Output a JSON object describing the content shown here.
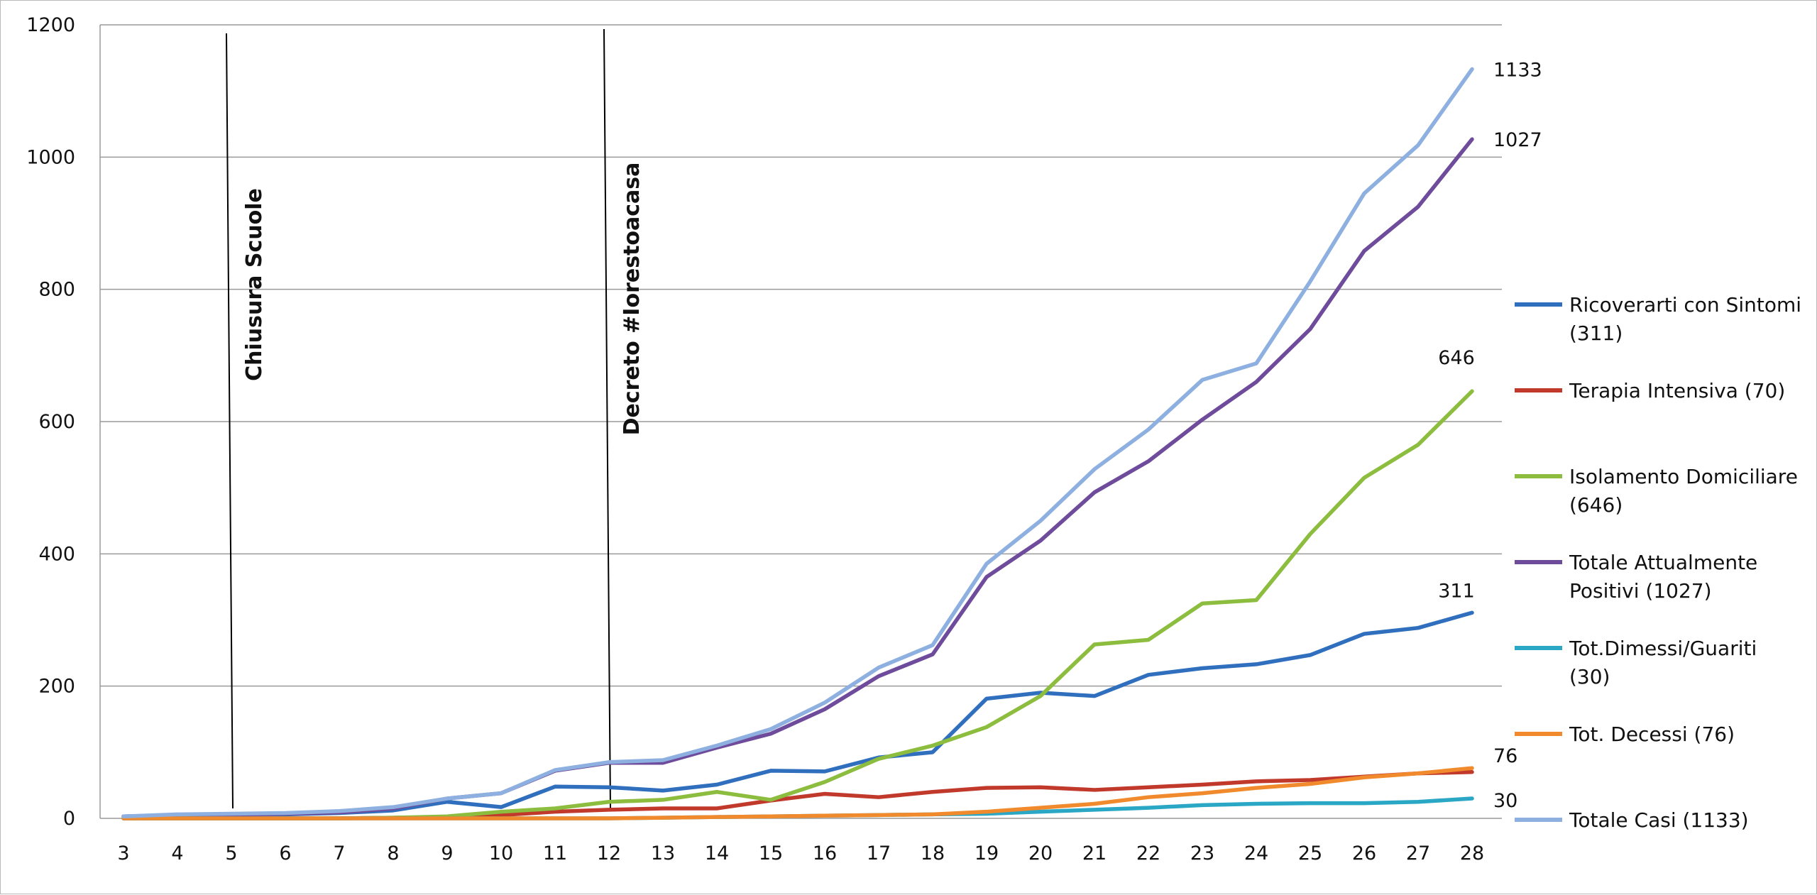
{
  "chart_data": {
    "type": "line",
    "title": "",
    "xlabel": "",
    "ylabel": "",
    "ylim": [
      0,
      1200
    ],
    "yticks": [
      0,
      200,
      400,
      600,
      800,
      1000,
      1200
    ],
    "grid": "horizontal",
    "legend_placement": "right",
    "x": [
      3,
      4,
      5,
      6,
      7,
      8,
      9,
      10,
      11,
      12,
      13,
      14,
      15,
      16,
      17,
      18,
      19,
      20,
      21,
      22,
      23,
      24,
      25,
      26,
      27,
      28
    ],
    "series": [
      {
        "name": "Ricoverarti con Sintomi (311)",
        "color": "#2f6fbd",
        "values": [
          3,
          5,
          5,
          6,
          8,
          12,
          25,
          17,
          48,
          47,
          42,
          51,
          72,
          71,
          92,
          100,
          181,
          190,
          185,
          217,
          227,
          233,
          247,
          279,
          288,
          311
        ]
      },
      {
        "name": "Terapia Intensiva (70)",
        "color": "#c0392b",
        "values": [
          0,
          0,
          0,
          0,
          0,
          1,
          2,
          5,
          10,
          13,
          15,
          15,
          27,
          37,
          32,
          40,
          46,
          47,
          43,
          47,
          51,
          56,
          58,
          63,
          68,
          70
        ]
      },
      {
        "name": "Isolamento Domiciliare (646)",
        "color": "#8dbd3e",
        "values": [
          0,
          0,
          0,
          0,
          0,
          1,
          3,
          10,
          15,
          25,
          28,
          40,
          28,
          55,
          90,
          110,
          138,
          185,
          263,
          270,
          325,
          330,
          430,
          515,
          565,
          646
        ]
      },
      {
        "name": "Totale Attualmente Positivi (1027)",
        "color": "#6f4c9b",
        "values": [
          3,
          5,
          5,
          7,
          9,
          15,
          30,
          38,
          72,
          84,
          84,
          107,
          128,
          165,
          215,
          248,
          365,
          420,
          493,
          540,
          603,
          660,
          740,
          858,
          925,
          1027
        ]
      },
      {
        "name": "Tot.Dimessi/Guariti (30)",
        "color": "#2aa7c4",
        "values": [
          0,
          0,
          0,
          0,
          0,
          0,
          0,
          0,
          0,
          0,
          1,
          2,
          3,
          4,
          5,
          6,
          7,
          10,
          13,
          16,
          20,
          22,
          23,
          23,
          25,
          30
        ]
      },
      {
        "name": "Tot. Decessi (76)",
        "color": "#f08a2c",
        "values": [
          0,
          0,
          0,
          0,
          0,
          0,
          0,
          0,
          0,
          0,
          1,
          2,
          3,
          4,
          5,
          6,
          10,
          16,
          22,
          32,
          38,
          46,
          52,
          62,
          68,
          76
        ]
      },
      {
        "name": "Totale Casi (1133)",
        "color": "#8db0e0",
        "values": [
          3,
          6,
          7,
          8,
          11,
          17,
          30,
          38,
          73,
          85,
          88,
          110,
          135,
          175,
          228,
          262,
          385,
          450,
          528,
          588,
          663,
          688,
          812,
          945,
          1018,
          1133
        ]
      }
    ],
    "annotations": [
      {
        "text": "Chiusura  Scuole",
        "x": 5
      },
      {
        "text": "Decreto  #Iorestoacasa",
        "x": 12
      }
    ],
    "end_labels": [
      {
        "text": "1133",
        "value": 1133
      },
      {
        "text": "1027",
        "value": 1027
      },
      {
        "text": "646",
        "value": 646
      },
      {
        "text": "311",
        "value": 311
      },
      {
        "text": "76",
        "value": 76
      },
      {
        "text": "30",
        "value": 30
      }
    ]
  }
}
